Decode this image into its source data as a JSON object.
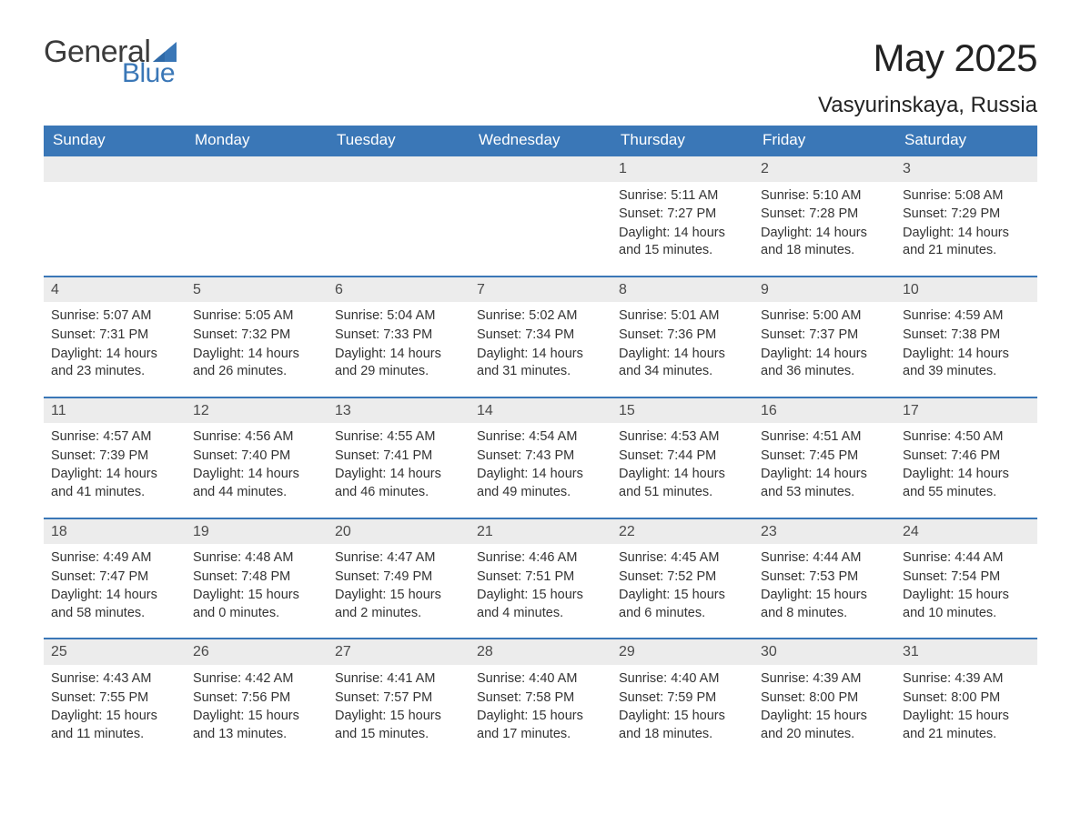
{
  "logo": {
    "text1": "General",
    "text2": "Blue",
    "text_color": "#3b3b3b",
    "accent_color": "#3a77b7"
  },
  "title": "May 2025",
  "location": "Vasyurinskaya, Russia",
  "colors": {
    "header_bg": "#3a77b7",
    "header_text": "#ffffff",
    "daynum_bg": "#ececec",
    "daynum_text": "#4a4a4a",
    "body_text": "#333333",
    "row_border": "#3a77b7",
    "page_bg": "#ffffff"
  },
  "fonts": {
    "title_size_pt": 32,
    "location_size_pt": 18,
    "header_size_pt": 13,
    "body_size_pt": 11
  },
  "day_headers": [
    "Sunday",
    "Monday",
    "Tuesday",
    "Wednesday",
    "Thursday",
    "Friday",
    "Saturday"
  ],
  "labels": {
    "sunrise": "Sunrise:",
    "sunset": "Sunset:",
    "daylight": "Daylight:"
  },
  "weeks": [
    [
      null,
      null,
      null,
      null,
      {
        "n": "1",
        "sunrise": "5:11 AM",
        "sunset": "7:27 PM",
        "daylight": "14 hours and 15 minutes."
      },
      {
        "n": "2",
        "sunrise": "5:10 AM",
        "sunset": "7:28 PM",
        "daylight": "14 hours and 18 minutes."
      },
      {
        "n": "3",
        "sunrise": "5:08 AM",
        "sunset": "7:29 PM",
        "daylight": "14 hours and 21 minutes."
      }
    ],
    [
      {
        "n": "4",
        "sunrise": "5:07 AM",
        "sunset": "7:31 PM",
        "daylight": "14 hours and 23 minutes."
      },
      {
        "n": "5",
        "sunrise": "5:05 AM",
        "sunset": "7:32 PM",
        "daylight": "14 hours and 26 minutes."
      },
      {
        "n": "6",
        "sunrise": "5:04 AM",
        "sunset": "7:33 PM",
        "daylight": "14 hours and 29 minutes."
      },
      {
        "n": "7",
        "sunrise": "5:02 AM",
        "sunset": "7:34 PM",
        "daylight": "14 hours and 31 minutes."
      },
      {
        "n": "8",
        "sunrise": "5:01 AM",
        "sunset": "7:36 PM",
        "daylight": "14 hours and 34 minutes."
      },
      {
        "n": "9",
        "sunrise": "5:00 AM",
        "sunset": "7:37 PM",
        "daylight": "14 hours and 36 minutes."
      },
      {
        "n": "10",
        "sunrise": "4:59 AM",
        "sunset": "7:38 PM",
        "daylight": "14 hours and 39 minutes."
      }
    ],
    [
      {
        "n": "11",
        "sunrise": "4:57 AM",
        "sunset": "7:39 PM",
        "daylight": "14 hours and 41 minutes."
      },
      {
        "n": "12",
        "sunrise": "4:56 AM",
        "sunset": "7:40 PM",
        "daylight": "14 hours and 44 minutes."
      },
      {
        "n": "13",
        "sunrise": "4:55 AM",
        "sunset": "7:41 PM",
        "daylight": "14 hours and 46 minutes."
      },
      {
        "n": "14",
        "sunrise": "4:54 AM",
        "sunset": "7:43 PM",
        "daylight": "14 hours and 49 minutes."
      },
      {
        "n": "15",
        "sunrise": "4:53 AM",
        "sunset": "7:44 PM",
        "daylight": "14 hours and 51 minutes."
      },
      {
        "n": "16",
        "sunrise": "4:51 AM",
        "sunset": "7:45 PM",
        "daylight": "14 hours and 53 minutes."
      },
      {
        "n": "17",
        "sunrise": "4:50 AM",
        "sunset": "7:46 PM",
        "daylight": "14 hours and 55 minutes."
      }
    ],
    [
      {
        "n": "18",
        "sunrise": "4:49 AM",
        "sunset": "7:47 PM",
        "daylight": "14 hours and 58 minutes."
      },
      {
        "n": "19",
        "sunrise": "4:48 AM",
        "sunset": "7:48 PM",
        "daylight": "15 hours and 0 minutes."
      },
      {
        "n": "20",
        "sunrise": "4:47 AM",
        "sunset": "7:49 PM",
        "daylight": "15 hours and 2 minutes."
      },
      {
        "n": "21",
        "sunrise": "4:46 AM",
        "sunset": "7:51 PM",
        "daylight": "15 hours and 4 minutes."
      },
      {
        "n": "22",
        "sunrise": "4:45 AM",
        "sunset": "7:52 PM",
        "daylight": "15 hours and 6 minutes."
      },
      {
        "n": "23",
        "sunrise": "4:44 AM",
        "sunset": "7:53 PM",
        "daylight": "15 hours and 8 minutes."
      },
      {
        "n": "24",
        "sunrise": "4:44 AM",
        "sunset": "7:54 PM",
        "daylight": "15 hours and 10 minutes."
      }
    ],
    [
      {
        "n": "25",
        "sunrise": "4:43 AM",
        "sunset": "7:55 PM",
        "daylight": "15 hours and 11 minutes."
      },
      {
        "n": "26",
        "sunrise": "4:42 AM",
        "sunset": "7:56 PM",
        "daylight": "15 hours and 13 minutes."
      },
      {
        "n": "27",
        "sunrise": "4:41 AM",
        "sunset": "7:57 PM",
        "daylight": "15 hours and 15 minutes."
      },
      {
        "n": "28",
        "sunrise": "4:40 AM",
        "sunset": "7:58 PM",
        "daylight": "15 hours and 17 minutes."
      },
      {
        "n": "29",
        "sunrise": "4:40 AM",
        "sunset": "7:59 PM",
        "daylight": "15 hours and 18 minutes."
      },
      {
        "n": "30",
        "sunrise": "4:39 AM",
        "sunset": "8:00 PM",
        "daylight": "15 hours and 20 minutes."
      },
      {
        "n": "31",
        "sunrise": "4:39 AM",
        "sunset": "8:00 PM",
        "daylight": "15 hours and 21 minutes."
      }
    ]
  ]
}
